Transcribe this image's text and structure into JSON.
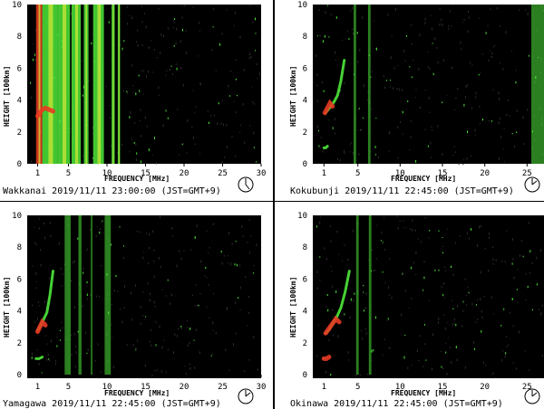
{
  "panels": [
    {
      "station": "Wakkanai",
      "caption": "Wakkanai 2019/11/11 23:00:00 (JST=GMT+9)",
      "xlabel": "FREQUENCY [MHz]",
      "ylabel": "HEIGHT [100km]",
      "x_ticks": [
        "1",
        "5",
        "10",
        "15",
        "20",
        "25",
        "30"
      ],
      "y_ticks": [
        "0",
        "2",
        "4",
        "6",
        "8",
        "10"
      ],
      "clock_icon": "clock-icon"
    },
    {
      "station": "Kokubunji",
      "caption": "Kokubunji 2019/11/11 22:45:00 (JST=GMT+9)",
      "xlabel": "FREQUENCY [MHz]",
      "ylabel": "HEIGHT [100km]",
      "x_ticks": [
        "1",
        "5",
        "10",
        "15",
        "20",
        "25"
      ],
      "y_ticks": [
        "0",
        "2",
        "4",
        "6",
        "8",
        "10"
      ],
      "clock_icon": "clock-icon"
    },
    {
      "station": "Yamagawa",
      "caption": "Yamagawa 2019/11/11 22:45:00 (JST=GMT+9)",
      "xlabel": "FREQUENCY [MHz]",
      "ylabel": "HEIGHT [100km]",
      "x_ticks": [
        "1",
        "5",
        "10",
        "15",
        "20",
        "25",
        "30"
      ],
      "y_ticks": [
        "0",
        "2",
        "4",
        "6",
        "8",
        "10"
      ],
      "clock_icon": "clock-icon"
    },
    {
      "station": "Okinawa",
      "caption": "Okinawa 2019/11/11 22:45:00 (JST=GMT+9)",
      "xlabel": "FREQUENCY [MHz]",
      "ylabel": "HEIGHT [100km]",
      "x_ticks": [
        "1",
        "5",
        "10",
        "15",
        "20",
        "25"
      ],
      "y_ticks": [
        "0",
        "2",
        "4",
        "6",
        "8",
        "10"
      ],
      "clock_icon": "clock-icon"
    }
  ],
  "colors": {
    "background": "#000000",
    "noise": "#2e2e2e",
    "echo_green": "#4ee83a",
    "echo_yellow": "#d8e838",
    "echo_red": "#e83a22",
    "axis": "#ffffff"
  },
  "chart_data": [
    {
      "type": "heatmap",
      "station": "Wakkanai",
      "xlim": [
        0,
        30
      ],
      "ylim": [
        0,
        10
      ],
      "interference_bands_mhz": [
        [
          0.8,
          1.6
        ],
        [
          1.6,
          3.6
        ],
        [
          3.6,
          5.2
        ],
        [
          5.4,
          6.6
        ],
        [
          7.0,
          7.6
        ],
        [
          8.2,
          9.6
        ],
        [
          10.6,
          11.0
        ],
        [
          11.4,
          11.7
        ]
      ],
      "echo_traces": [
        {
          "name": "",
          "x": [
            1.0,
            1.3,
            1.6,
            2.0,
            2.5,
            3.0
          ],
          "y": [
            3.0,
            3.2,
            3.4,
            3.5,
            3.4,
            3.3
          ],
          "color": "red"
        }
      ]
    },
    {
      "type": "heatmap",
      "station": "Kokubunji",
      "xlim": [
        0,
        27
      ],
      "ylim": [
        0,
        10
      ],
      "interference_bands_mhz": [
        [
          4.5,
          4.8
        ],
        [
          6.2,
          6.5
        ],
        [
          25.5,
          27.0
        ]
      ],
      "echo_traces": [
        {
          "name": "",
          "x": [
            1.2,
            1.5,
            1.8,
            2.2,
            2.6,
            3.0,
            3.4
          ],
          "y": [
            3.2,
            3.4,
            3.6,
            3.9,
            4.3,
            5.2,
            6.5
          ],
          "color": "green"
        },
        {
          "name": "",
          "x": [
            1.1,
            1.4,
            1.7,
            2.0
          ],
          "y": [
            3.2,
            3.5,
            3.8,
            3.6
          ],
          "color": "red"
        },
        {
          "name": "",
          "x": [
            1.0,
            1.2,
            1.4
          ],
          "y": [
            1.0,
            1.0,
            1.1
          ],
          "color": "green"
        }
      ]
    },
    {
      "type": "heatmap",
      "station": "Yamagawa",
      "xlim": [
        0,
        30
      ],
      "ylim": [
        0,
        10
      ],
      "interference_bands_mhz": [
        [
          4.5,
          5.0
        ],
        [
          5.0,
          5.3
        ],
        [
          6.3,
          6.7
        ],
        [
          9.7,
          10.5
        ],
        [
          7.9,
          8.1
        ]
      ],
      "echo_traces": [
        {
          "name": "",
          "x": [
            1.0,
            1.3,
            1.7,
            2.2,
            2.6,
            3.0
          ],
          "y": [
            2.8,
            3.0,
            3.4,
            3.9,
            5.0,
            6.5
          ],
          "color": "green"
        },
        {
          "name": "",
          "x": [
            1.0,
            1.3,
            1.6,
            2.0
          ],
          "y": [
            2.7,
            3.0,
            3.3,
            3.1
          ],
          "color": "red"
        },
        {
          "name": "",
          "x": [
            0.8,
            1.2,
            1.6
          ],
          "y": [
            1.0,
            1.0,
            1.1
          ],
          "color": "green"
        }
      ]
    },
    {
      "type": "heatmap",
      "station": "Okinawa",
      "xlim": [
        0,
        27
      ],
      "ylim": [
        0,
        10
      ],
      "interference_bands_mhz": [
        [
          4.8,
          5.1
        ],
        [
          6.3,
          6.6
        ]
      ],
      "echo_traces": [
        {
          "name": "",
          "x": [
            1.2,
            1.6,
            2.0,
            2.5,
            3.0,
            3.5,
            4.0
          ],
          "y": [
            2.6,
            2.8,
            3.2,
            3.6,
            4.2,
            5.2,
            6.5
          ],
          "color": "green"
        },
        {
          "name": "",
          "x": [
            1.2,
            1.6,
            2.0,
            2.4,
            2.8
          ],
          "y": [
            2.6,
            2.9,
            3.2,
            3.5,
            3.3
          ],
          "color": "red"
        },
        {
          "name": "",
          "x": [
            1.0,
            1.3,
            1.6
          ],
          "y": [
            1.0,
            1.0,
            1.1
          ],
          "color": "red"
        }
      ]
    }
  ]
}
